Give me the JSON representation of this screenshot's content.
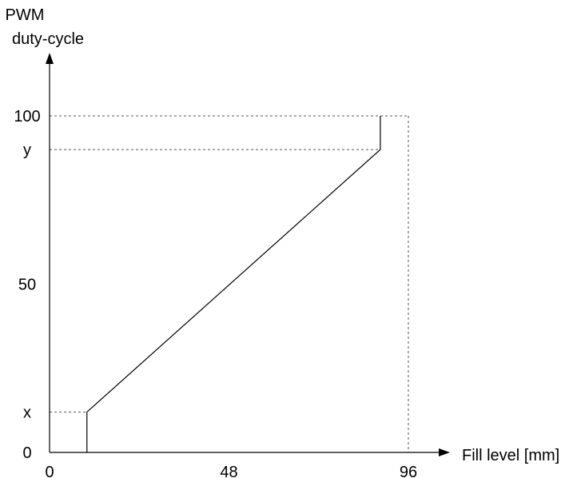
{
  "chart_data": {
    "type": "line",
    "title": "",
    "ylabel_lines": [
      "PWM",
      "duty-cycle"
    ],
    "xlabel": "Fill level [mm]",
    "xlim": [
      0,
      96
    ],
    "ylim": [
      0,
      100
    ],
    "grid": false,
    "x_ticks": [
      {
        "label": "0",
        "value": 0
      },
      {
        "label": "48",
        "value": 48
      },
      {
        "label": "96",
        "value": 96
      }
    ],
    "y_ticks": [
      {
        "label": "0",
        "value": 0
      },
      {
        "label": "x",
        "value": 12
      },
      {
        "label": "50",
        "value": 50
      },
      {
        "label": "y",
        "value": 90
      },
      {
        "label": "100",
        "value": 100
      }
    ],
    "series": [
      {
        "x": [
          10,
          10,
          88.5,
          88.5
        ],
        "y": [
          0,
          12,
          90,
          100
        ]
      }
    ],
    "reference_lines": [
      {
        "from": [
          0,
          12
        ],
        "to": [
          10,
          12
        ]
      },
      {
        "from": [
          0,
          90
        ],
        "to": [
          88.5,
          90
        ]
      },
      {
        "from": [
          0,
          100
        ],
        "to": [
          96,
          100
        ]
      },
      {
        "from": [
          96,
          100
        ],
        "to": [
          96,
          0
        ]
      }
    ],
    "colors": {
      "axis": "#000000",
      "line": "#000000",
      "reference": "#555555"
    }
  }
}
